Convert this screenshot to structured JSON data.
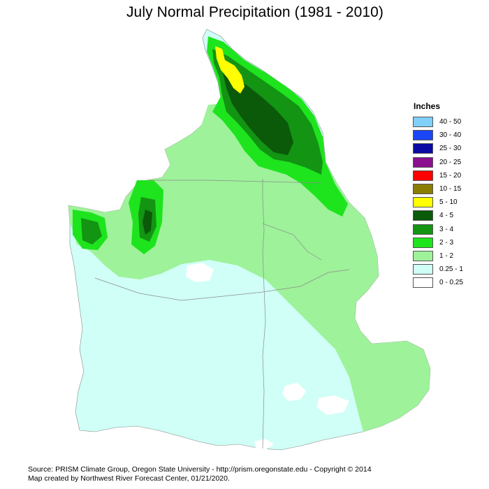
{
  "title": "July Normal Precipitation (1981 - 2010)",
  "legend": {
    "title": "Inches",
    "items": [
      {
        "label": "40 - 50",
        "color": "#7fcff7"
      },
      {
        "label": "30 - 40",
        "color": "#1a46f5"
      },
      {
        "label": "25 - 30",
        "color": "#0b0aa5"
      },
      {
        "label": "20 - 25",
        "color": "#8b108f"
      },
      {
        "label": "15 - 20",
        "color": "#ff0000"
      },
      {
        "label": "10 - 15",
        "color": "#8a7d00"
      },
      {
        "label": "5 - 10",
        "color": "#ffff00"
      },
      {
        "label": "4 - 5",
        "color": "#0a5a0a"
      },
      {
        "label": "3 - 4",
        "color": "#139413"
      },
      {
        "label": "2 - 3",
        "color": "#1ee41e"
      },
      {
        "label": "1 - 2",
        "color": "#9ef29a"
      },
      {
        "label": "0.25 - 1",
        "color": "#cffff6"
      },
      {
        "label": "0 - 0.25",
        "color": "#ffffff"
      }
    ]
  },
  "credits": {
    "line1": "Source: PRISM Climate Group, Oregon State University - http://prism.oregonstate.edu - Copyright © 2014",
    "line2": "Map created by Northwest River Forecast Center, 01/21/2020."
  }
}
